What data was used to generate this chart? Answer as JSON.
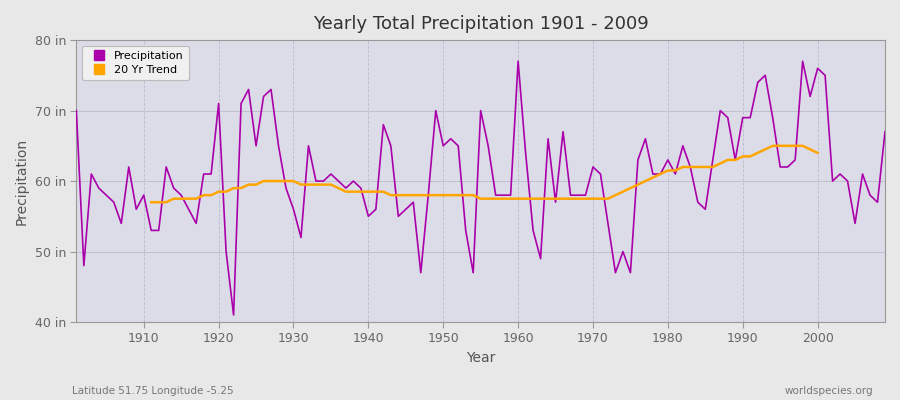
{
  "title": "Yearly Total Precipitation 1901 - 2009",
  "xlabel": "Year",
  "ylabel": "Precipitation",
  "credit_left": "Latitude 51.75 Longitude -5.25",
  "credit_right": "worldspecies.org",
  "ylim": [
    40,
    80
  ],
  "yticks": [
    40,
    50,
    60,
    70,
    80
  ],
  "ytick_labels": [
    "40 in",
    "50 in",
    "60 in",
    "70 in",
    "80 in"
  ],
  "xlim": [
    1901,
    2009
  ],
  "xticks": [
    1910,
    1920,
    1930,
    1940,
    1950,
    1960,
    1970,
    1980,
    1990,
    2000
  ],
  "precip_color": "#AA00AA",
  "trend_color": "#FFA500",
  "fig_bg_color": "#E8E8E8",
  "plot_bg_color": "#DCDCE8",
  "grid_color": "#BBBBCC",
  "legend_bg": "#F0F0F0",
  "years": [
    1901,
    1902,
    1903,
    1904,
    1905,
    1906,
    1907,
    1908,
    1909,
    1910,
    1911,
    1912,
    1913,
    1914,
    1915,
    1916,
    1917,
    1918,
    1919,
    1920,
    1921,
    1922,
    1923,
    1924,
    1925,
    1926,
    1927,
    1928,
    1929,
    1930,
    1931,
    1932,
    1933,
    1934,
    1935,
    1936,
    1937,
    1938,
    1939,
    1940,
    1941,
    1942,
    1943,
    1944,
    1945,
    1946,
    1947,
    1948,
    1949,
    1950,
    1951,
    1952,
    1953,
    1954,
    1955,
    1956,
    1957,
    1958,
    1959,
    1960,
    1961,
    1962,
    1963,
    1964,
    1965,
    1966,
    1967,
    1968,
    1969,
    1970,
    1971,
    1972,
    1973,
    1974,
    1975,
    1976,
    1977,
    1978,
    1979,
    1980,
    1981,
    1982,
    1983,
    1984,
    1985,
    1986,
    1987,
    1988,
    1989,
    1990,
    1991,
    1992,
    1993,
    1994,
    1995,
    1996,
    1997,
    1998,
    1999,
    2000,
    2001,
    2002,
    2003,
    2004,
    2005,
    2006,
    2007,
    2008,
    2009
  ],
  "precipitation": [
    70,
    48,
    61,
    59,
    58,
    57,
    54,
    62,
    56,
    58,
    53,
    53,
    62,
    59,
    58,
    56,
    54,
    61,
    61,
    71,
    50,
    41,
    71,
    73,
    65,
    72,
    73,
    65,
    59,
    56,
    52,
    65,
    60,
    60,
    61,
    60,
    59,
    60,
    59,
    55,
    56,
    68,
    65,
    55,
    56,
    57,
    47,
    58,
    70,
    65,
    66,
    65,
    53,
    47,
    70,
    65,
    58,
    58,
    58,
    77,
    64,
    53,
    49,
    66,
    57,
    67,
    58,
    58,
    58,
    62,
    61,
    54,
    47,
    50,
    47,
    63,
    66,
    61,
    61,
    63,
    61,
    65,
    62,
    57,
    56,
    63,
    70,
    69,
    63,
    69,
    69,
    74,
    75,
    69,
    62,
    62,
    63,
    77,
    72,
    76,
    75,
    60,
    61,
    60,
    54,
    61,
    58,
    57,
    67
  ],
  "trend": [
    null,
    null,
    null,
    null,
    null,
    null,
    null,
    null,
    null,
    null,
    57.0,
    57.0,
    57.0,
    57.5,
    57.5,
    57.5,
    57.5,
    58.0,
    58.0,
    58.5,
    58.5,
    59.0,
    59.0,
    59.5,
    59.5,
    60.0,
    60.0,
    60.0,
    60.0,
    60.0,
    59.5,
    59.5,
    59.5,
    59.5,
    59.5,
    59.0,
    58.5,
    58.5,
    58.5,
    58.5,
    58.5,
    58.5,
    58.0,
    58.0,
    58.0,
    58.0,
    58.0,
    58.0,
    58.0,
    58.0,
    58.0,
    58.0,
    58.0,
    58.0,
    57.5,
    57.5,
    57.5,
    57.5,
    57.5,
    57.5,
    57.5,
    57.5,
    57.5,
    57.5,
    57.5,
    57.5,
    57.5,
    57.5,
    57.5,
    57.5,
    57.5,
    57.5,
    58.0,
    58.5,
    59.0,
    59.5,
    60.0,
    60.5,
    61.0,
    61.5,
    61.5,
    62.0,
    62.0,
    62.0,
    62.0,
    62.0,
    62.5,
    63.0,
    63.0,
    63.5,
    63.5,
    64.0,
    64.5,
    65.0,
    65.0,
    65.0,
    65.0,
    65.0,
    64.5,
    64.0,
    null,
    null,
    null,
    null,
    null,
    null,
    null,
    null,
    null
  ]
}
